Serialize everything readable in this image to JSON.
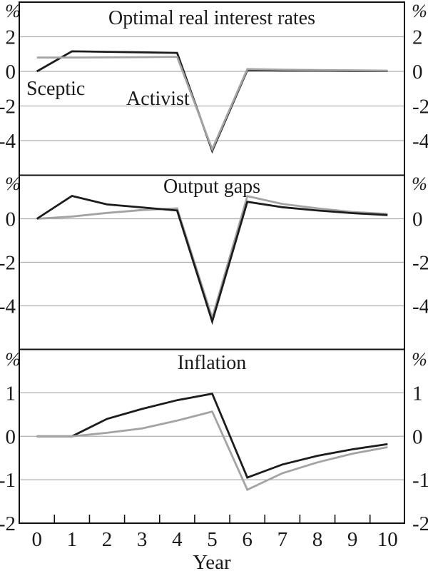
{
  "figure_name": "Three-panel macroeconomic simulation chart",
  "axis": {
    "xlabel": "Year",
    "x_tick_labels": [
      "0",
      "1",
      "2",
      "3",
      "4",
      "5",
      "6",
      "7",
      "8",
      "9",
      "10"
    ],
    "unit_label": "%"
  },
  "line_colors": {
    "sceptic": "#1c1c1c",
    "activist": "#a3a3a3"
  },
  "chart_data": [
    {
      "type": "line",
      "title": "Optimal real interest rates",
      "unit_label": "%",
      "x": [
        0,
        1,
        2,
        3,
        4,
        5,
        6,
        7,
        8,
        9,
        10
      ],
      "ylim": [
        -6,
        4
      ],
      "yticks": [
        2,
        0,
        -2,
        -4
      ],
      "grid": true,
      "legend_position": "none",
      "top_series": "Activist",
      "series": [
        {
          "name": "Sceptic",
          "color": "#1c1c1c",
          "values": [
            0,
            1.16,
            1.13,
            1.1,
            1.07,
            -4.6,
            0.07,
            0.05,
            0.04,
            0.03,
            0.02
          ]
        },
        {
          "name": "Activist",
          "color": "#a3a3a3",
          "values": [
            0.8,
            0.8,
            0.81,
            0.82,
            0.84,
            -4.5,
            0.13,
            0.1,
            0.08,
            0.06,
            0.04
          ]
        }
      ],
      "annotations": [
        {
          "text": "Sceptic",
          "year": -0.3,
          "value": -1.36
        },
        {
          "text": "Activist",
          "year": 2.55,
          "value": -1.94
        }
      ]
    },
    {
      "type": "line",
      "title": "Output gaps",
      "unit_label": "%",
      "x": [
        0,
        1,
        2,
        3,
        4,
        5,
        6,
        7,
        8,
        9,
        10
      ],
      "ylim": [
        -6,
        2
      ],
      "yticks": [
        0,
        -2,
        -4
      ],
      "grid": true,
      "legend_position": "none",
      "top_series": "Sceptic",
      "series": [
        {
          "name": "Sceptic",
          "color": "#1c1c1c",
          "values": [
            0,
            1.05,
            0.66,
            0.52,
            0.38,
            -4.72,
            0.78,
            0.53,
            0.38,
            0.26,
            0.17
          ]
        },
        {
          "name": "Activist",
          "color": "#a3a3a3",
          "values": [
            0,
            0.1,
            0.27,
            0.4,
            0.48,
            -4.55,
            1.04,
            0.68,
            0.48,
            0.31,
            0.22
          ]
        }
      ],
      "annotations": []
    },
    {
      "type": "line",
      "title": "Inflation",
      "unit_label": "%",
      "x": [
        0,
        1,
        2,
        3,
        4,
        5,
        6,
        7,
        8,
        9,
        10
      ],
      "ylim": [
        -2,
        2
      ],
      "yticks": [
        1,
        0,
        -1,
        -2
      ],
      "grid": true,
      "legend_position": "none",
      "top_series": "Activist",
      "series": [
        {
          "name": "Sceptic",
          "color": "#1c1c1c",
          "values": [
            0,
            0,
            0.4,
            0.63,
            0.83,
            0.98,
            -0.95,
            -0.65,
            -0.45,
            -0.3,
            -0.18
          ]
        },
        {
          "name": "Activist",
          "color": "#a3a3a3",
          "values": [
            0,
            0,
            0.08,
            0.18,
            0.36,
            0.57,
            -1.23,
            -0.85,
            -0.6,
            -0.4,
            -0.25
          ]
        }
      ],
      "annotations": []
    }
  ]
}
